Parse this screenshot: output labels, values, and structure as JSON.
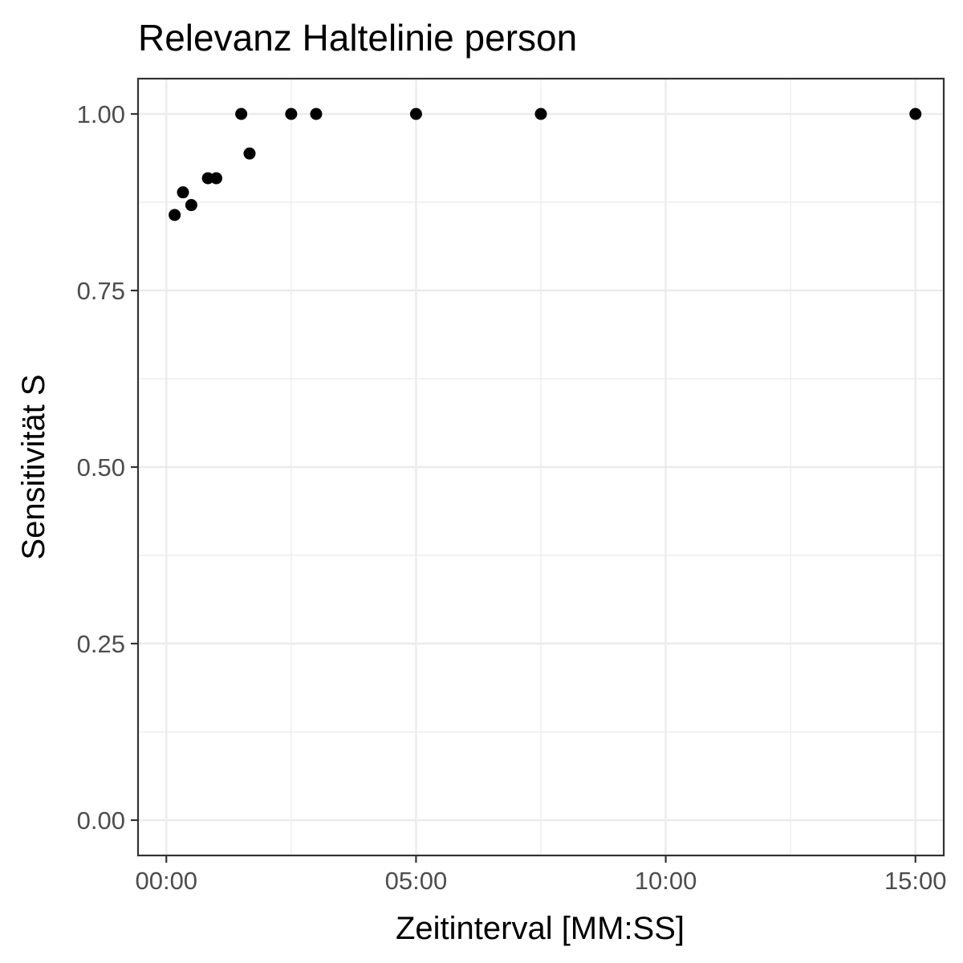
{
  "chart_data": {
    "type": "scatter",
    "title": "Relevanz Haltelinie person",
    "xlabel": "Zeitinterval [MM:SS]",
    "ylabel": "Sensitivität S",
    "x_unit": "MM:SS",
    "x": [
      "00:10",
      "00:20",
      "00:30",
      "00:50",
      "01:00",
      "01:30",
      "01:40",
      "02:30",
      "03:00",
      "05:00",
      "07:30",
      "15:00"
    ],
    "y": [
      0.857,
      0.889,
      0.871,
      0.909,
      0.909,
      1.0,
      0.944,
      1.0,
      1.0,
      1.0,
      1.0,
      1.0
    ],
    "x_ticks": [
      "00:00",
      "05:00",
      "10:00",
      "15:00"
    ],
    "y_ticks": [
      "0.00",
      "0.25",
      "0.50",
      "0.75",
      "1.00"
    ],
    "xlim": [
      "-00:34",
      "15:34"
    ],
    "ylim": [
      -0.05,
      1.05
    ],
    "grid": true,
    "legend": "none",
    "point_color": "#000000",
    "grid_color": "#ebebeb",
    "panel_border_color": "#333333"
  }
}
